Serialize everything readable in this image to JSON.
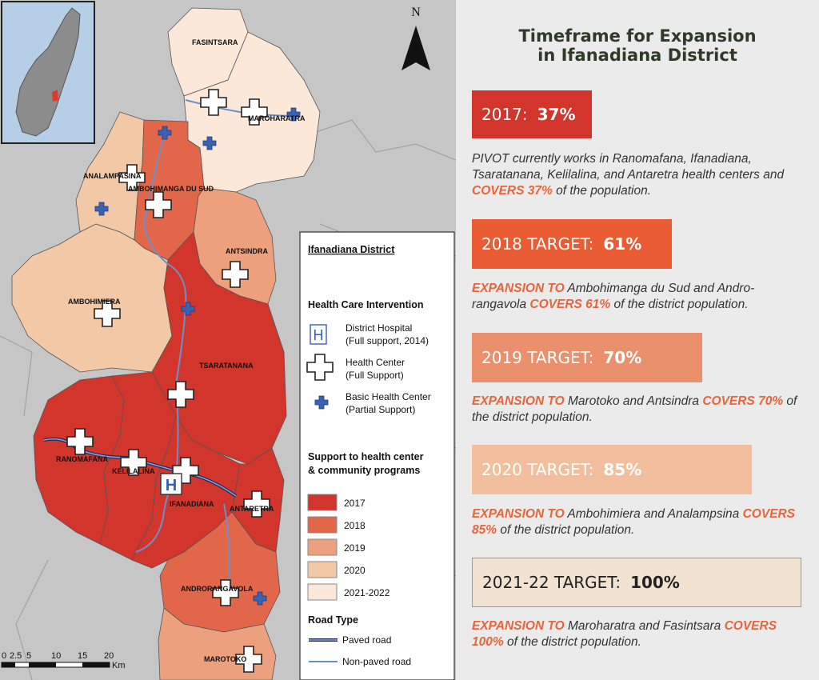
{
  "map": {
    "north": "N",
    "districts": [
      {
        "name": "FASINTSARA",
        "phase": "2021-2022"
      },
      {
        "name": "MAROHARATRA",
        "phase": "2021-2022"
      },
      {
        "name": "ANALAMPASINA",
        "phase": "2020"
      },
      {
        "name": "AMBOHIMANGA DU SUD",
        "phase": "2018"
      },
      {
        "name": "ANTSINDRA",
        "phase": "2019"
      },
      {
        "name": "AMBOHIMIERA",
        "phase": "2020"
      },
      {
        "name": "TSARATANANA",
        "phase": "2017"
      },
      {
        "name": "RANOMAFANA",
        "phase": "2017"
      },
      {
        "name": "KELILALINA",
        "phase": "2017"
      },
      {
        "name": "IFANADIANA",
        "phase": "2017"
      },
      {
        "name": "ANTARETRA",
        "phase": "2017"
      },
      {
        "name": "ANDRORANGAVOLA",
        "phase": "2018"
      },
      {
        "name": "MAROTOKO",
        "phase": "2019"
      }
    ],
    "scale": {
      "ticks": [
        "0",
        "2.5",
        "5",
        "10",
        "15",
        "20"
      ],
      "unit": "Km"
    }
  },
  "legend": {
    "title": "Ifanadiana District",
    "intervention_title": "Health Care Intervention",
    "hospital_icon": "H",
    "hospital": [
      "District Hospital",
      "(Full support, 2014)"
    ],
    "health_center": [
      "Health Center",
      "(Full Support)"
    ],
    "basic_center": [
      "Basic Health Center",
      "(Partial Support)"
    ],
    "support_title": [
      "Support to health center",
      "& community programs"
    ],
    "years": [
      {
        "label": "2017",
        "color": "#d2352b"
      },
      {
        "label": "2018",
        "color": "#e2674a"
      },
      {
        "label": "2019",
        "color": "#eca07e"
      },
      {
        "label": "2020",
        "color": "#f3c8a6"
      },
      {
        "label": "2021-2022",
        "color": "#fbe8d8"
      }
    ],
    "road_title": "Road Type",
    "roads": [
      "Paved road",
      "Non-paved road"
    ]
  },
  "panel": {
    "title_lines": [
      "Timeframe for Expansion",
      "in Ifanadiana District"
    ],
    "items": [
      {
        "label": "2017:",
        "value": "37%",
        "color": "#d2352b",
        "desc": [
          "PIVOT currently works in Ranomafana, Ifanadiana, Tsaratanana, Kelilalina, and Antaretra health centers and ",
          "COVERS 37%",
          " of the population."
        ]
      },
      {
        "label": "2018 TARGET:",
        "value": "61%",
        "color": "#ea5c34",
        "desc": [
          "EXPANSION TO",
          " Ambohimanga du Sud and Andro-rangavola ",
          "COVERS 61%",
          " of the district population."
        ]
      },
      {
        "label": "2019 TARGET:",
        "value": "70%",
        "color": "#ea906d",
        "desc": [
          "EXPANSION TO",
          " Marotoko and Antsindra ",
          "COVERS 70%",
          " of the district population."
        ]
      },
      {
        "label": "2020 TARGET:",
        "value": "85%",
        "color": "#f2bf9e",
        "desc": [
          "EXPANSION TO",
          " Ambohimiera and Analampsina ",
          "COVERS 85%",
          " of the district population."
        ]
      },
      {
        "label": "2021-22 TARGET:",
        "value": "100%",
        "color": "#f2e2d1",
        "desc": [
          "EXPANSION TO",
          " Maroharatra and Fasintsara ",
          "COVERS 100%",
          " of the district population."
        ]
      }
    ]
  }
}
